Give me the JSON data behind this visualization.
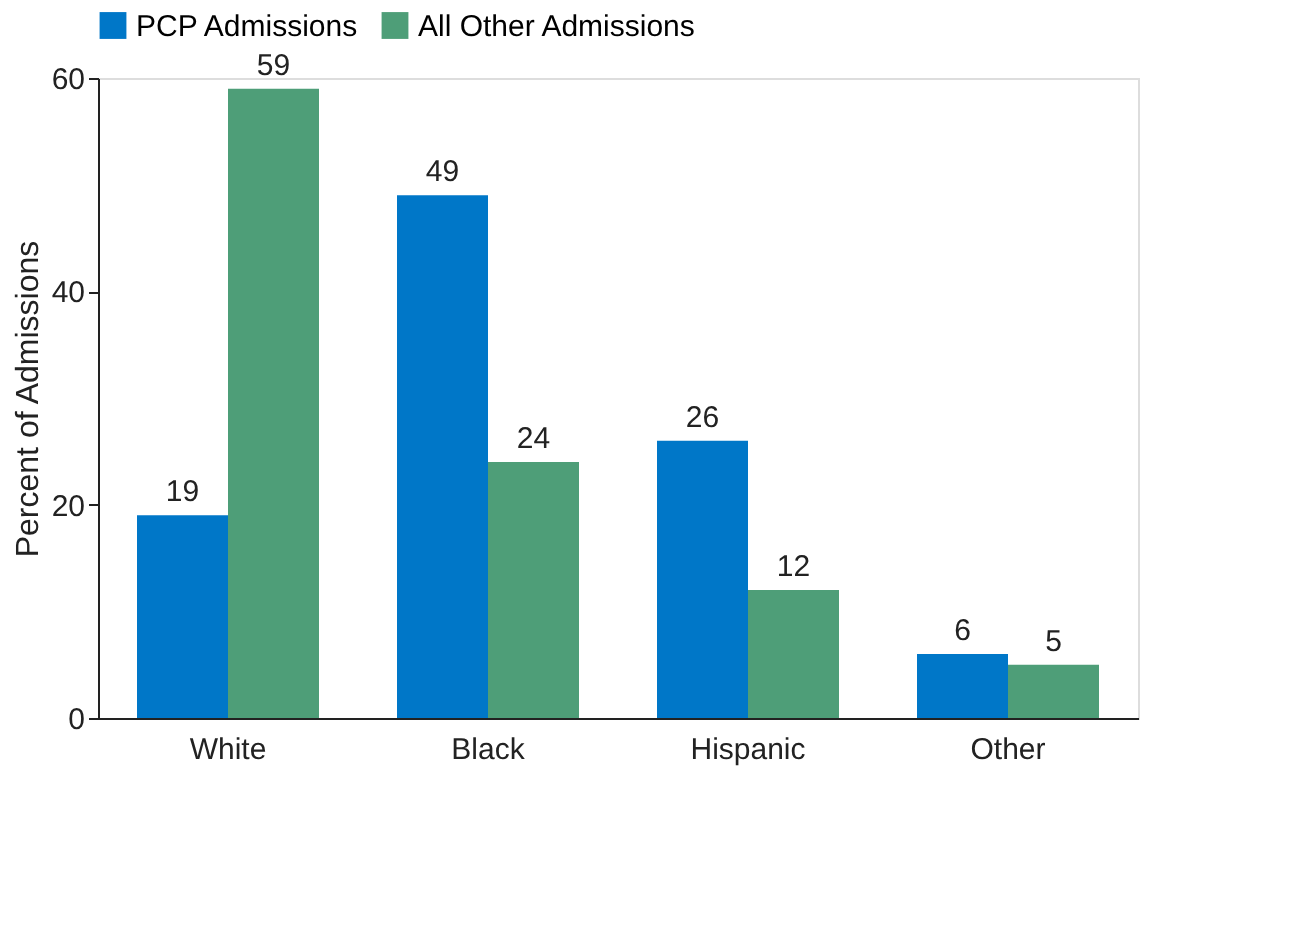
{
  "chart_data": {
    "type": "bar",
    "ylabel": "Percent of Admissions",
    "categories": [
      "White",
      "Black",
      "Hispanic",
      "Other"
    ],
    "series": [
      {
        "name": "PCP Admissions",
        "color": "#0077c8",
        "values": [
          19,
          49,
          26,
          6
        ]
      },
      {
        "name": "All Other Admissions",
        "color": "#4e9e78",
        "values": [
          59,
          24,
          12,
          5
        ]
      }
    ],
    "ylim": [
      0,
      60
    ],
    "yticks": [
      0,
      20,
      40,
      60
    ],
    "grid": false,
    "legend": "top",
    "data_labels": true
  }
}
